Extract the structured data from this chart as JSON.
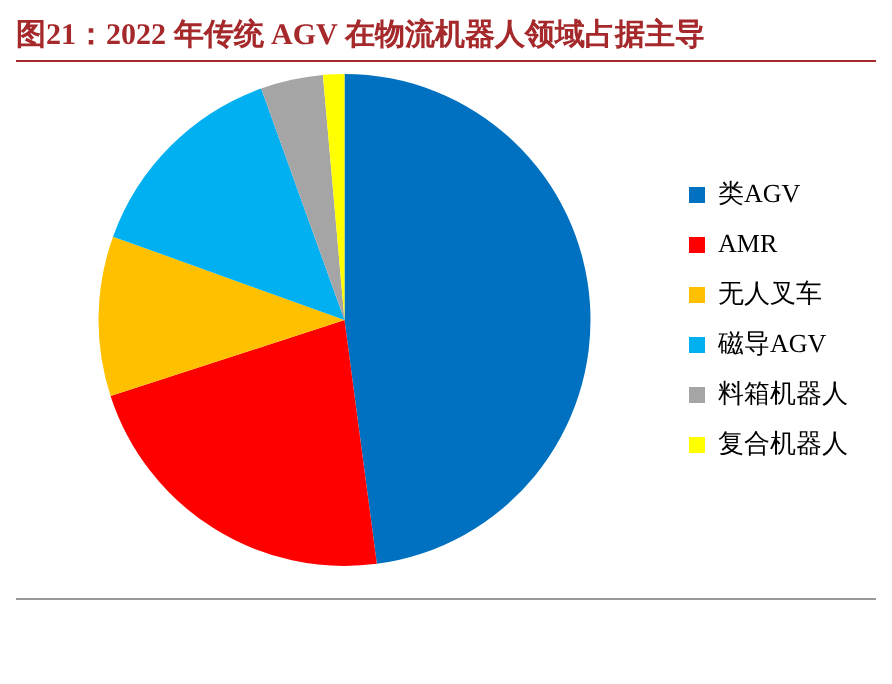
{
  "chart_data": {
    "type": "pie",
    "title": "图21：2022 年传统 AGV 在物流机器人领域占据主导",
    "categories": [
      "类AGV",
      "AMR",
      "无人叉车",
      "磁导AGV",
      "料箱机器人",
      "复合机器人"
    ],
    "values": [
      47.9,
      22.1,
      10.5,
      14.0,
      4.1,
      1.4
    ],
    "colors": [
      "#0070c0",
      "#ff0000",
      "#ffc000",
      "#00b0f0",
      "#a5a5a5",
      "#ffff00"
    ],
    "legend": "right"
  }
}
